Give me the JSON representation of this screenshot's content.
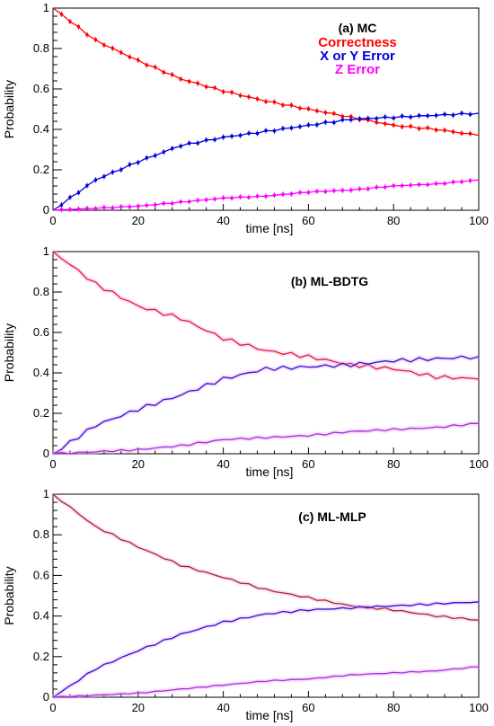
{
  "chart_data": [
    {
      "type": "line",
      "title": "(a) MC",
      "xlabel": "time [ns]",
      "ylabel": "Probability",
      "xlim": [
        0,
        100
      ],
      "ylim": [
        0,
        1
      ],
      "xticks": [
        "0",
        "20",
        "40",
        "60",
        "80",
        "100"
      ],
      "yticks": [
        "0",
        "0.2",
        "0.4",
        "0.6",
        "0.8",
        "1"
      ],
      "legend": "top-right",
      "markers": true,
      "x": [
        0,
        10,
        20,
        30,
        40,
        50,
        60,
        70,
        80,
        90,
        100
      ],
      "series": [
        {
          "name": "Correctness",
          "color": "#ff0000",
          "values": [
            1.0,
            0.84,
            0.74,
            0.65,
            0.59,
            0.54,
            0.5,
            0.46,
            0.42,
            0.4,
            0.37
          ]
        },
        {
          "name": "X or Y Error",
          "color": "#0000dd",
          "values": [
            0.0,
            0.15,
            0.24,
            0.32,
            0.36,
            0.39,
            0.42,
            0.45,
            0.46,
            0.47,
            0.48
          ]
        },
        {
          "name": "Z Error",
          "color": "#ff00ff",
          "values": [
            0.0,
            0.01,
            0.02,
            0.04,
            0.06,
            0.07,
            0.09,
            0.1,
            0.12,
            0.13,
            0.15
          ]
        }
      ]
    },
    {
      "type": "line",
      "title": "(b) ML-BDTG",
      "xlabel": "time [ns]",
      "ylabel": "Probability",
      "xlim": [
        0,
        100
      ],
      "ylim": [
        0,
        1
      ],
      "xticks": [
        "0",
        "20",
        "40",
        "60",
        "80",
        "100"
      ],
      "yticks": [
        "0",
        "0.2",
        "0.4",
        "0.6",
        "0.8",
        "1"
      ],
      "markers": false,
      "x": [
        0,
        10,
        20,
        30,
        40,
        50,
        60,
        70,
        80,
        90,
        100
      ],
      "series": [
        {
          "color": "#dd2222",
          "values": [
            1.0,
            0.84,
            0.73,
            0.67,
            0.57,
            0.51,
            0.48,
            0.44,
            0.42,
            0.38,
            0.37
          ]
        },
        {
          "color": "#1a1acc",
          "values": [
            0.0,
            0.14,
            0.22,
            0.29,
            0.37,
            0.42,
            0.43,
            0.44,
            0.46,
            0.47,
            0.48
          ]
        },
        {
          "color": "#9933dd",
          "values": [
            0.0,
            0.01,
            0.02,
            0.04,
            0.07,
            0.08,
            0.09,
            0.11,
            0.12,
            0.13,
            0.15
          ]
        }
      ]
    },
    {
      "type": "line",
      "title": "(c) ML-MLP",
      "xlabel": "time [ns]",
      "ylabel": "Probability",
      "xlim": [
        0,
        100
      ],
      "ylim": [
        0,
        1
      ],
      "xticks": [
        "0",
        "20",
        "40",
        "60",
        "80",
        "100"
      ],
      "yticks": [
        "0",
        "0.2",
        "0.4",
        "0.6",
        "0.8",
        "1"
      ],
      "markers": false,
      "x": [
        0,
        10,
        20,
        30,
        40,
        50,
        60,
        70,
        80,
        90,
        100
      ],
      "series": [
        {
          "color": "#993300",
          "values": [
            1.0,
            0.84,
            0.74,
            0.65,
            0.59,
            0.53,
            0.49,
            0.45,
            0.43,
            0.4,
            0.38
          ]
        },
        {
          "color": "#1a1acc",
          "values": [
            0.0,
            0.14,
            0.23,
            0.31,
            0.37,
            0.41,
            0.43,
            0.44,
            0.45,
            0.46,
            0.47
          ]
        },
        {
          "color": "#9933dd",
          "values": [
            0.0,
            0.01,
            0.02,
            0.04,
            0.06,
            0.08,
            0.09,
            0.11,
            0.12,
            0.13,
            0.15
          ]
        }
      ]
    }
  ]
}
